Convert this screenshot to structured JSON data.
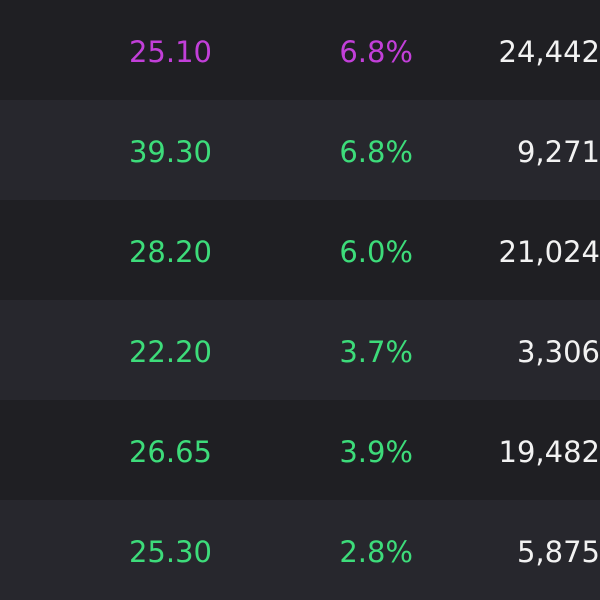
{
  "table": {
    "rows": [
      {
        "price": "25.10",
        "change": "6.8%",
        "volume": "24,442",
        "color": "#c23fd9"
      },
      {
        "price": "39.30",
        "change": "6.8%",
        "volume": "9,271",
        "color": "#3ddc7a"
      },
      {
        "price": "28.20",
        "change": "6.0%",
        "volume": "21,024",
        "color": "#3ddc7a"
      },
      {
        "price": "22.20",
        "change": "3.7%",
        "volume": "3,306",
        "color": "#3ddc7a"
      },
      {
        "price": "26.65",
        "change": "3.9%",
        "volume": "19,482",
        "color": "#3ddc7a"
      },
      {
        "price": "25.30",
        "change": "2.8%",
        "volume": "5,875",
        "color": "#3ddc7a"
      }
    ]
  }
}
